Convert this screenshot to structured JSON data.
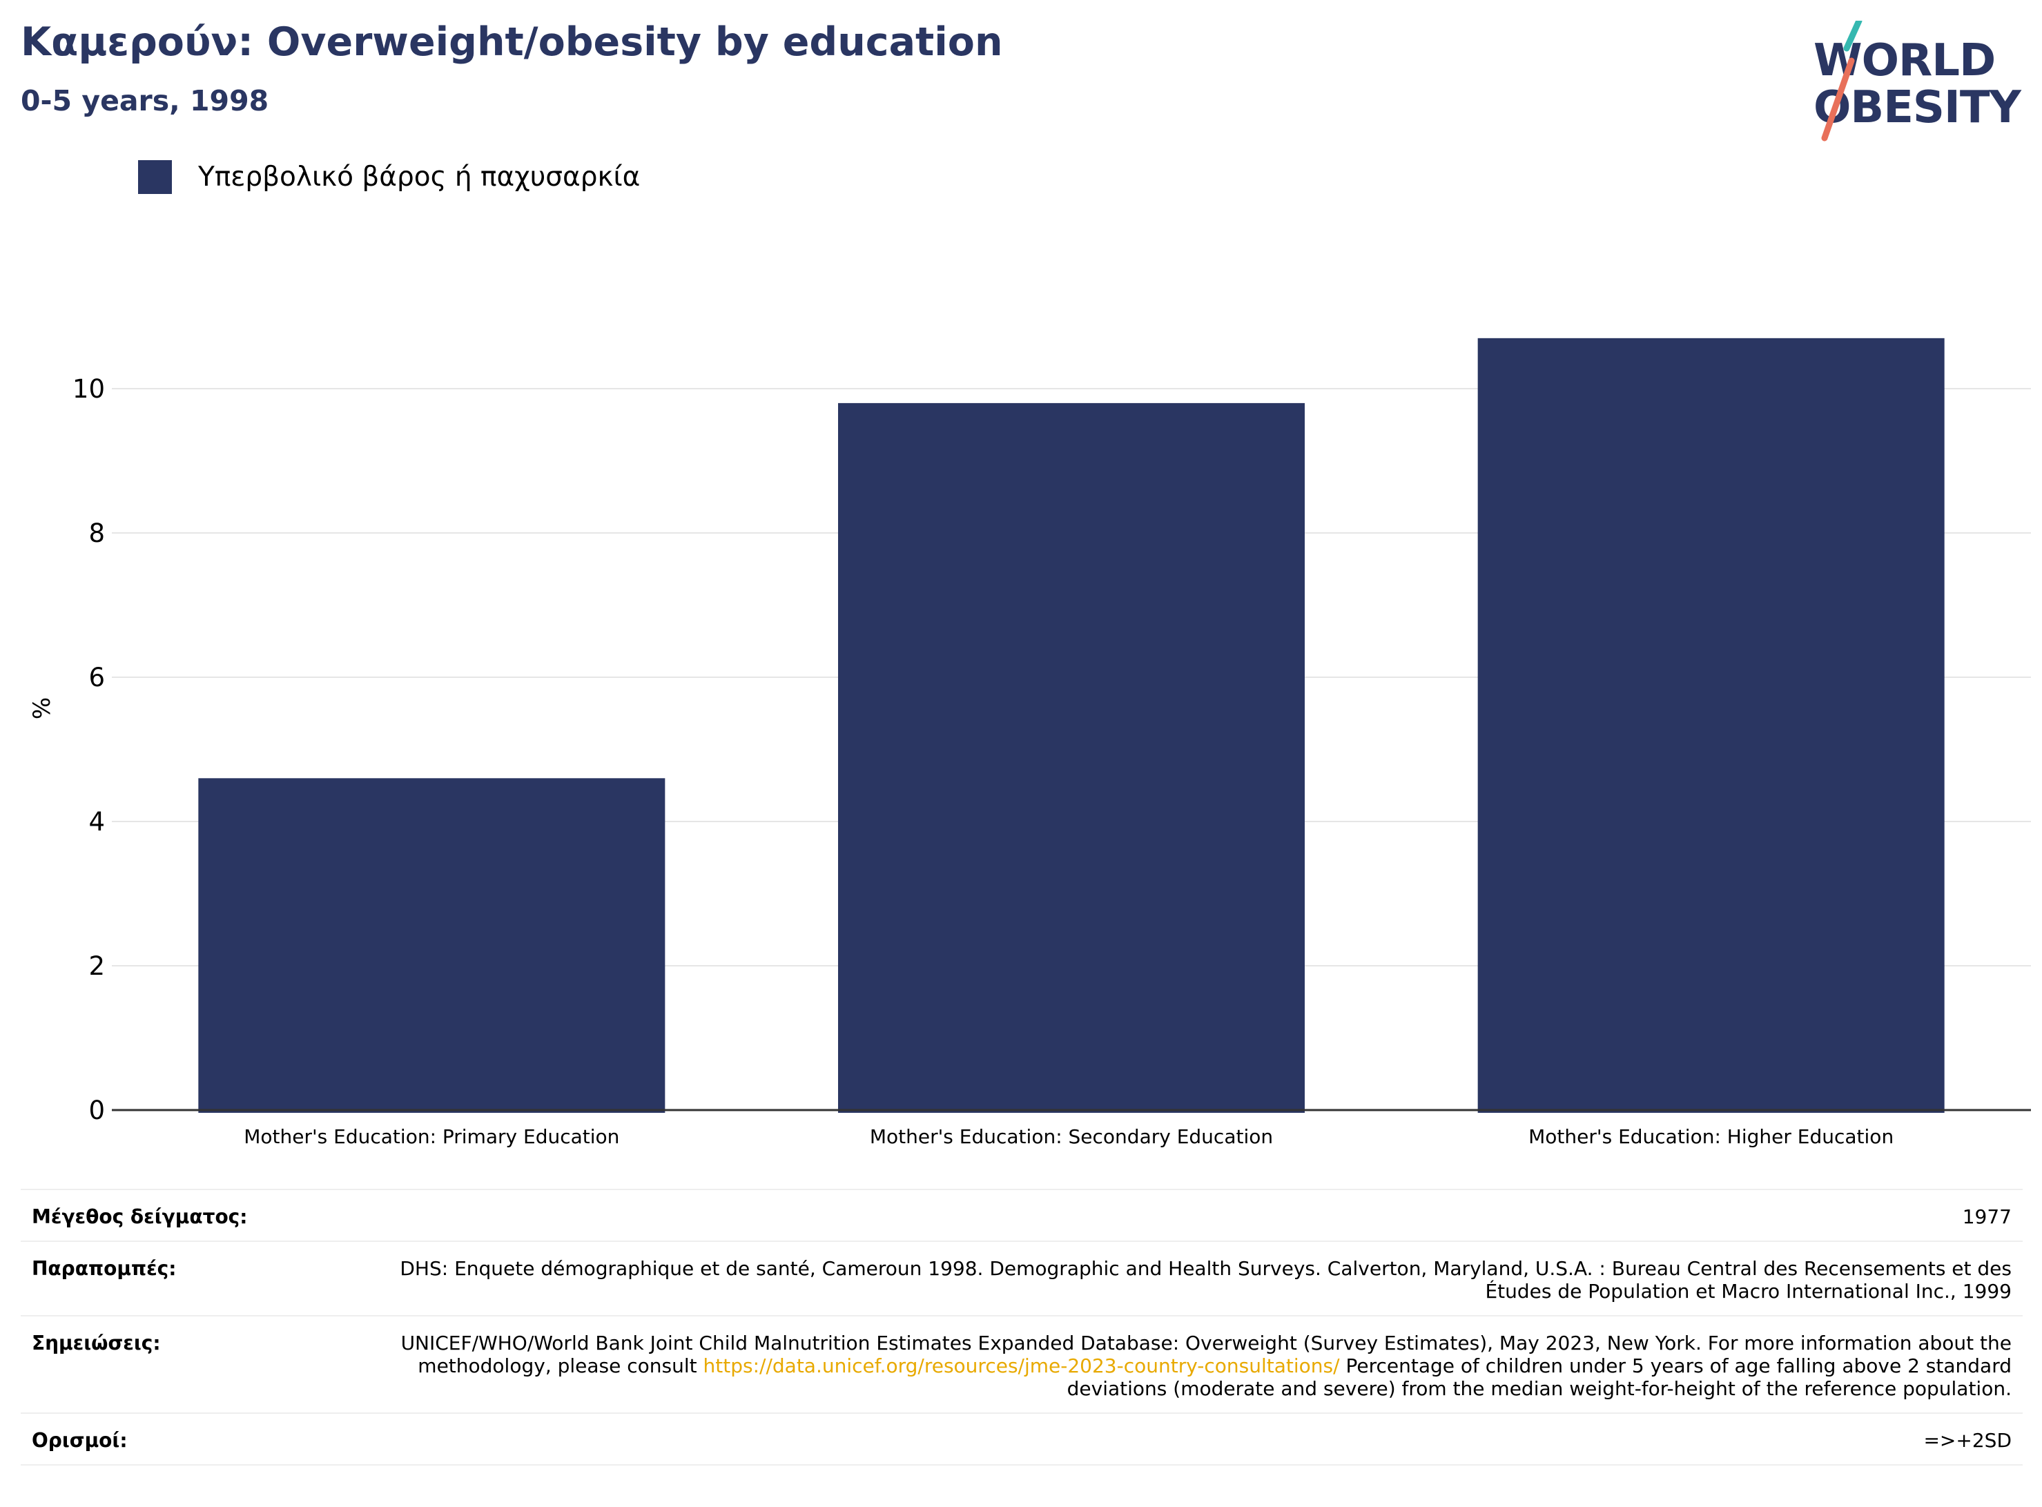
{
  "header": {
    "title": "Καμερούν: Overweight/obesity by education",
    "subtitle": "0-5 years, 1998"
  },
  "logo": {
    "line1": "WORLD",
    "line2": "OBESITY"
  },
  "colors": {
    "bar": "#2a3662",
    "title": "#2a3662",
    "link": "#e8a900",
    "grid": "#e6e6e6",
    "axis": "#333333"
  },
  "chart_data": {
    "type": "bar",
    "categories": [
      "Mother's Education: Primary Education",
      "Mother's Education: Secondary Education",
      "Mother's Education: Higher Education"
    ],
    "series": [
      {
        "name": "Υπερβολικό βάρος ή παχυσαρκία",
        "values": [
          4.6,
          9.8,
          10.7
        ]
      }
    ],
    "ylabel": "%",
    "ylim": [
      0,
      12
    ],
    "yticks": [
      0,
      2,
      4,
      6,
      8,
      10
    ],
    "grid": true,
    "legend_position": "top-left"
  },
  "info": {
    "sample_size_label": "Μέγεθος δείγματος:",
    "sample_size_value": "1977",
    "references_label": "Παραπομπές:",
    "references_value": "DHS: Enquete démographique et de santé, Cameroun 1998. Demographic and Health Surveys. Calverton, Maryland, U.S.A. : Bureau Central des Recensements et des Études de Population et Macro International Inc., 1999",
    "notes_label": "Σημειώσεις:",
    "notes_text_before": "UNICEF/WHO/World Bank Joint Child Malnutrition Estimates Expanded Database: Overweight (Survey Estimates), May 2023, New York. For more information about the methodology, please consult ",
    "notes_link": "https://data.unicef.org/resources/jme-2023-country-consultations/",
    "notes_text_after": " Percentage of children under 5 years of age falling above 2 standard deviations (moderate and severe) from the median weight-for-height of the reference population.",
    "definitions_label": "Ορισμοί:",
    "definitions_value": "=>+2SD"
  }
}
